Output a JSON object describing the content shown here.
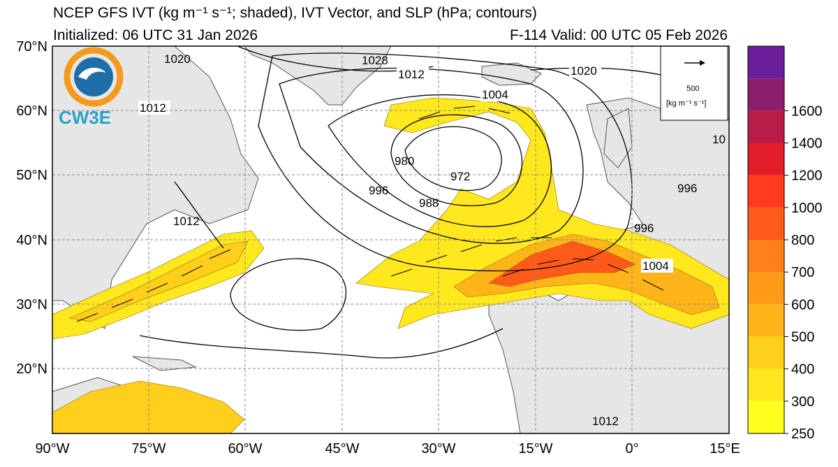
{
  "title": {
    "line1": "NCEP GFS IVT (kg m⁻¹ s⁻¹; shaded), IVT Vector, and SLP (hPa; contours)",
    "initialized": "Initialized: 06 UTC 31 Jan 2026",
    "valid": "F-114  Valid: 00 UTC 05 Feb 2026"
  },
  "logo": {
    "text": "CW3E"
  },
  "reference_vector": {
    "value": "500",
    "units": "[kg m⁻¹ s⁻¹]"
  },
  "map": {
    "lat_range": [
      10,
      70
    ],
    "lon_range": [
      -90,
      15
    ],
    "lat_labels": [
      "20°N",
      "30°N",
      "40°N",
      "50°N",
      "60°N",
      "70°N"
    ],
    "lon_labels": [
      "90°W",
      "75°W",
      "60°W",
      "45°W",
      "30°W",
      "15°W",
      "0°",
      "15°E"
    ],
    "contour_labels": [
      "1020",
      "1012",
      "1004",
      "1020",
      "1012",
      "980",
      "972",
      "996",
      "988",
      "996",
      "1004",
      "1012",
      "996",
      "1012",
      "1028",
      "10"
    ]
  },
  "colorbar": {
    "levels": [
      250,
      300,
      400,
      500,
      600,
      700,
      800,
      1000,
      1200,
      1400,
      1600
    ],
    "tick_labels": [
      "250",
      "300",
      "400",
      "500",
      "600",
      "700",
      "800",
      "1000",
      "1200",
      "1400",
      "1600"
    ],
    "colors": [
      "#ffff1e",
      "#ffe81e",
      "#ffcf1c",
      "#ffb51a",
      "#ff9a19",
      "#ff7f19",
      "#ff5a19",
      "#ff3b1e",
      "#e11e28",
      "#b91c46",
      "#8c1e6e",
      "#6a1e9a"
    ]
  },
  "colors": {
    "land": "#e6e6e6",
    "ocean": "#ffffff",
    "coast": "#555555",
    "grid": "#888888"
  }
}
